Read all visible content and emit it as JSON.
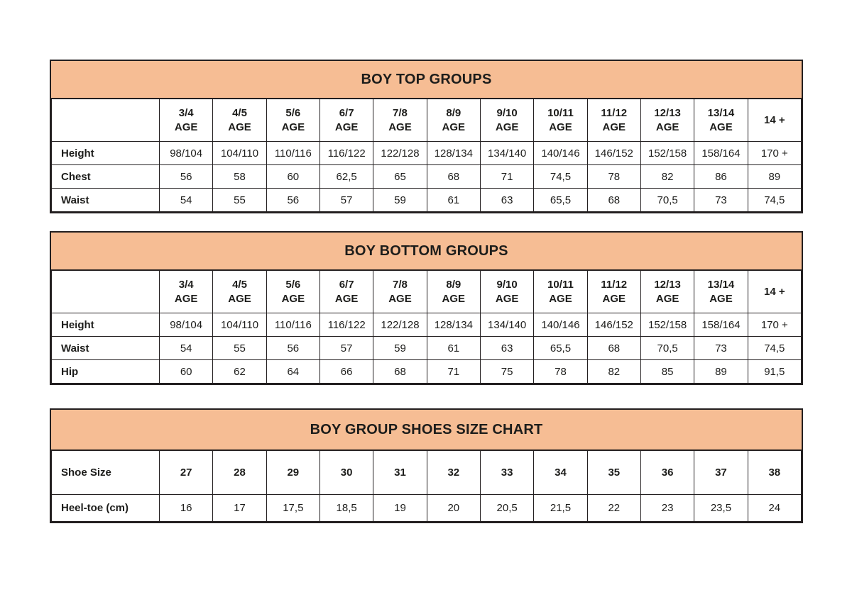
{
  "colors": {
    "title_band": "#f6bd94",
    "border": "#231f20",
    "text": "#1d1d1b",
    "page_bg": "#ffffff"
  },
  "tables": [
    {
      "title": "BOY TOP GROUPS",
      "columns": [
        {
          "top": "3/4",
          "bottom": "AGE"
        },
        {
          "top": "4/5",
          "bottom": "AGE"
        },
        {
          "top": "5/6",
          "bottom": "AGE"
        },
        {
          "top": "6/7",
          "bottom": "AGE"
        },
        {
          "top": "7/8",
          "bottom": "AGE"
        },
        {
          "top": "8/9",
          "bottom": "AGE"
        },
        {
          "top": "9/10",
          "bottom": "AGE"
        },
        {
          "top": "10/11",
          "bottom": "AGE"
        },
        {
          "top": "11/12",
          "bottom": "AGE"
        },
        {
          "top": "12/13",
          "bottom": "AGE"
        },
        {
          "top": "13/14",
          "bottom": "AGE"
        },
        {
          "top": "14 +",
          "bottom": ""
        }
      ],
      "rows": [
        {
          "label": "Height",
          "values": [
            "98/104",
            "104/110",
            "110/116",
            "116/122",
            "122/128",
            "128/134",
            "134/140",
            "140/146",
            "146/152",
            "152/158",
            "158/164",
            "170 +"
          ]
        },
        {
          "label": "Chest",
          "values": [
            "56",
            "58",
            "60",
            "62,5",
            "65",
            "68",
            "71",
            "74,5",
            "78",
            "82",
            "86",
            "89"
          ]
        },
        {
          "label": "Waist",
          "values": [
            "54",
            "55",
            "56",
            "57",
            "59",
            "61",
            "63",
            "65,5",
            "68",
            "70,5",
            "73",
            "74,5"
          ]
        }
      ]
    },
    {
      "title": "BOY BOTTOM GROUPS",
      "columns": [
        {
          "top": "3/4",
          "bottom": "AGE"
        },
        {
          "top": "4/5",
          "bottom": "AGE"
        },
        {
          "top": "5/6",
          "bottom": "AGE"
        },
        {
          "top": "6/7",
          "bottom": "AGE"
        },
        {
          "top": "7/8",
          "bottom": "AGE"
        },
        {
          "top": "8/9",
          "bottom": "AGE"
        },
        {
          "top": "9/10",
          "bottom": "AGE"
        },
        {
          "top": "10/11",
          "bottom": "AGE"
        },
        {
          "top": "11/12",
          "bottom": "AGE"
        },
        {
          "top": "12/13",
          "bottom": "AGE"
        },
        {
          "top": "13/14",
          "bottom": "AGE"
        },
        {
          "top": "14 +",
          "bottom": ""
        }
      ],
      "rows": [
        {
          "label": "Height",
          "values": [
            "98/104",
            "104/110",
            "110/116",
            "116/122",
            "122/128",
            "128/134",
            "134/140",
            "140/146",
            "146/152",
            "152/158",
            "158/164",
            "170 +"
          ]
        },
        {
          "label": "Waist",
          "values": [
            "54",
            "55",
            "56",
            "57",
            "59",
            "61",
            "63",
            "65,5",
            "68",
            "70,5",
            "73",
            "74,5"
          ]
        },
        {
          "label": "Hip",
          "values": [
            "60",
            "62",
            "64",
            "66",
            "68",
            "71",
            "75",
            "78",
            "82",
            "85",
            "89",
            "91,5"
          ]
        }
      ]
    },
    {
      "title": "BOY GROUP SHOES SIZE CHART",
      "columns": [],
      "rows": [
        {
          "label": "Shoe Size",
          "values": [
            "27",
            "28",
            "29",
            "30",
            "31",
            "32",
            "33",
            "34",
            "35",
            "36",
            "37",
            "38"
          ]
        },
        {
          "label": "Heel-toe (cm)",
          "values": [
            "16",
            "17",
            "17,5",
            "18,5",
            "19",
            "20",
            "20,5",
            "21,5",
            "22",
            "23",
            "23,5",
            "24"
          ]
        }
      ]
    }
  ]
}
